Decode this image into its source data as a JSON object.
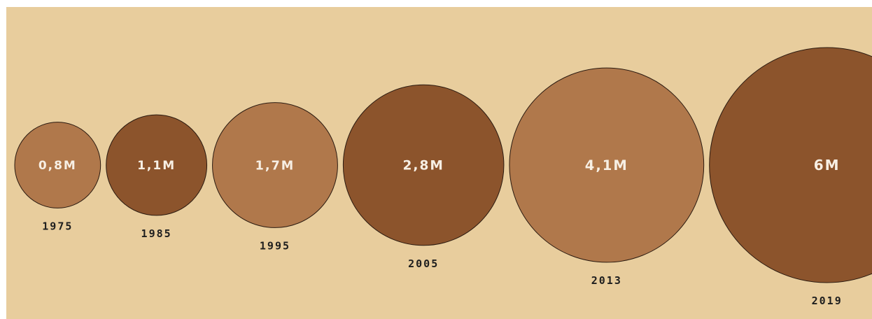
{
  "chart_data": {
    "type": "bubble",
    "categories": [
      "1975",
      "1985",
      "1995",
      "2005",
      "2013",
      "2019"
    ],
    "values": [
      0.8,
      1.1,
      1.7,
      2.8,
      4.1,
      6
    ],
    "labels": [
      "0,8M",
      "1,1M",
      "1,7M",
      "2,8M",
      "4,1M",
      "6M"
    ],
    "colors": [
      "#b0784b",
      "#8c542c",
      "#b0784b",
      "#8c542c",
      "#b0784b",
      "#8c542c"
    ],
    "title": "",
    "xlabel": "",
    "ylabel": "",
    "legend": "none",
    "grid": false
  },
  "colors": {
    "background": "#e8cd9d",
    "light_bubble": "#b0784b",
    "dark_bubble": "#8c542c",
    "bubble_text": "#f7efe4",
    "year_text": "#1e1e1e"
  }
}
